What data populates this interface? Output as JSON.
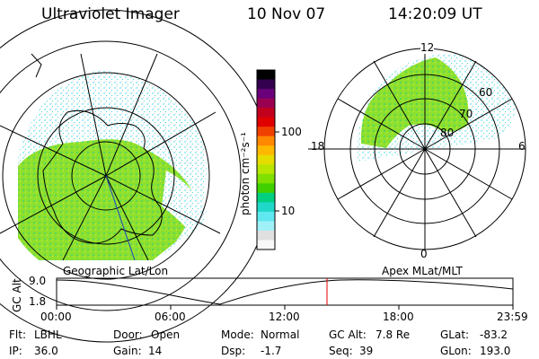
{
  "header": {
    "instrument": "Ultraviolet Imager",
    "date": "10 Nov 07",
    "time": "14:20:09 UT"
  },
  "colorbar": {
    "unit_label": "photon cm⁻²s⁻¹",
    "ticks": [
      "100",
      "10"
    ],
    "colors": [
      "#000000",
      "#33004f",
      "#6a007a",
      "#9a0050",
      "#c2001e",
      "#e00000",
      "#f04000",
      "#ff8800",
      "#ffb800",
      "#e6dd00",
      "#b8e600",
      "#80e000",
      "#40d000",
      "#00d080",
      "#20d8c8",
      "#60e8f0",
      "#a0f0f8",
      "#e0e0e0",
      "#f8f8f8"
    ]
  },
  "left_map": {
    "caption": "Geographic Lat/Lon"
  },
  "right_map": {
    "caption": "Apex MLat/MLT",
    "mlt_labels": {
      "top": "12",
      "left": "18",
      "right": "6",
      "bottom": "0"
    },
    "lat_labels": [
      "60",
      "70",
      "80"
    ]
  },
  "altitude_plot": {
    "ylabel": "GC Alt",
    "y_ticks": [
      "9.0",
      "1.8"
    ],
    "x_ticks": [
      "00:00",
      "06:00",
      "12:00",
      "18:00",
      "23:59"
    ],
    "marker_color": "#e00000"
  },
  "status": {
    "flt_label": "Flt:",
    "flt_value": "LBHL",
    "ip_label": "IP:",
    "ip_value": "36.0",
    "door_label": "Door:",
    "door_value": "Open",
    "gain_label": "Gain:",
    "gain_value": "14",
    "mode_label": "Mode:",
    "mode_value": "Normal",
    "dsp_label": "Dsp:",
    "dsp_value": "-1.7",
    "gcalt_label": "GC Alt:",
    "gcalt_value": "7.8 Re",
    "seq_label": "Seq:",
    "seq_value": "39",
    "glat_label": "GLat:",
    "glat_value": "-83.2",
    "glon_label": "GLon:",
    "glon_value": "193.0"
  }
}
